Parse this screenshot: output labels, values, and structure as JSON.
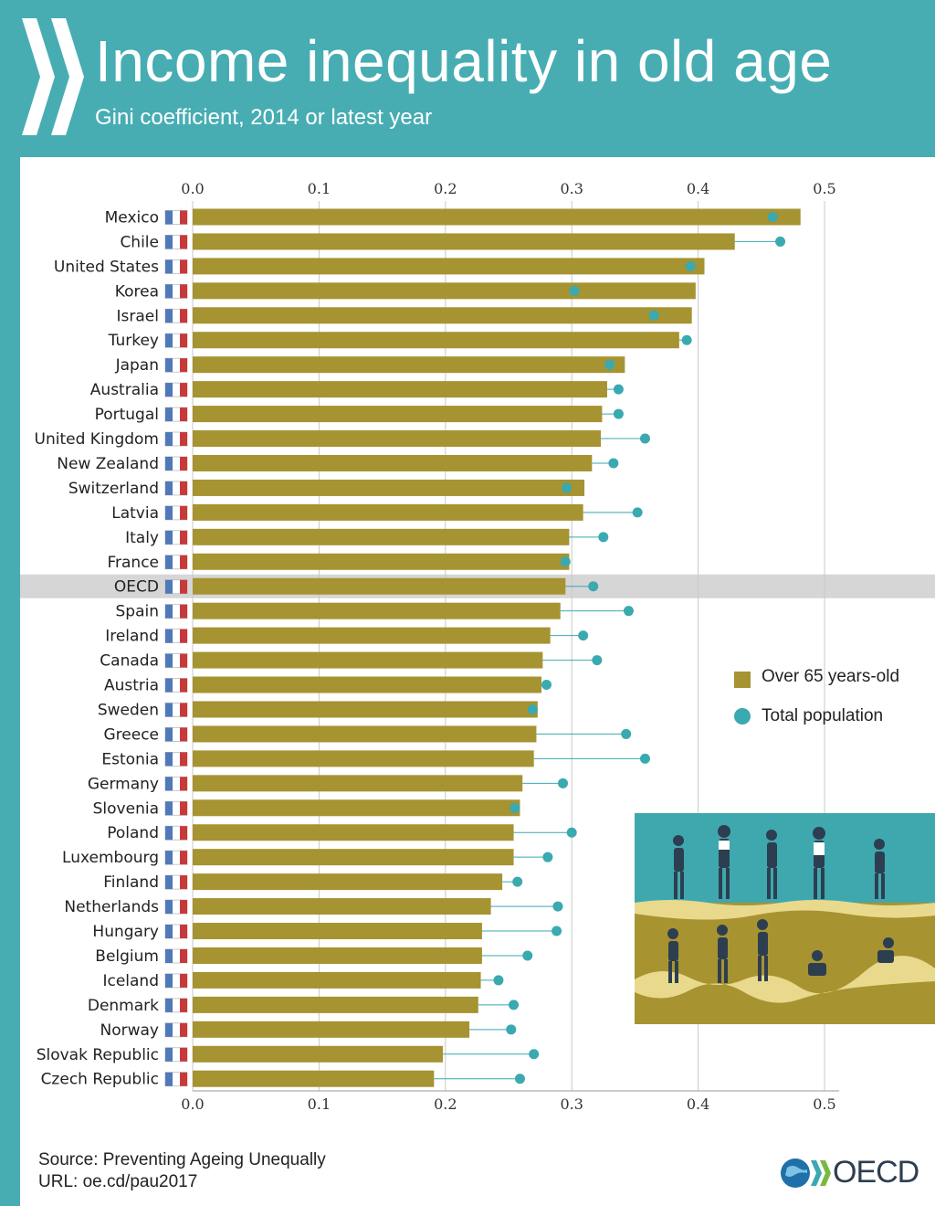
{
  "header": {
    "title": "Income inequality in old age",
    "subtitle": "Gini coefficient, 2014 or latest year"
  },
  "colors": {
    "header_bg": "#47adb3",
    "bar": "#a69331",
    "dot": "#3aa9b0",
    "oecd_band": "#d6d6d6"
  },
  "chart_data": {
    "type": "bar",
    "orientation": "horizontal",
    "title": "Income inequality in old age",
    "subtitle": "Gini coefficient, 2014 or latest year",
    "xlim": [
      0,
      0.5
    ],
    "ticks": [
      "0.0",
      "0.1",
      "0.2",
      "0.3",
      "0.4",
      "0.5"
    ],
    "grid": true,
    "legend_position": "right",
    "highlight": "OECD",
    "categories": [
      "Mexico",
      "Chile",
      "United States",
      "Korea",
      "Israel",
      "Turkey",
      "Japan",
      "Australia",
      "Portugal",
      "United Kingdom",
      "New Zealand",
      "Switzerland",
      "Latvia",
      "Italy",
      "France",
      "OECD",
      "Spain",
      "Ireland",
      "Canada",
      "Austria",
      "Sweden",
      "Greece",
      "Estonia",
      "Germany",
      "Slovenia",
      "Poland",
      "Luxembourg",
      "Finland",
      "Netherlands",
      "Hungary",
      "Belgium",
      "Iceland",
      "Denmark",
      "Norway",
      "Slovak Republic",
      "Czech Republic"
    ],
    "series": [
      {
        "name": "Over 65 years-old",
        "type": "bar",
        "values": [
          0.481,
          0.429,
          0.405,
          0.398,
          0.395,
          0.385,
          0.342,
          0.328,
          0.324,
          0.323,
          0.316,
          0.31,
          0.309,
          0.298,
          0.298,
          0.295,
          0.291,
          0.283,
          0.277,
          0.276,
          0.273,
          0.272,
          0.27,
          0.261,
          0.259,
          0.254,
          0.254,
          0.245,
          0.236,
          0.229,
          0.229,
          0.228,
          0.226,
          0.219,
          0.198,
          0.191
        ]
      },
      {
        "name": "Total population",
        "type": "dot",
        "values": [
          0.459,
          0.465,
          0.394,
          0.302,
          0.365,
          0.391,
          0.33,
          0.337,
          0.337,
          0.358,
          0.333,
          0.296,
          0.352,
          0.325,
          0.295,
          0.317,
          0.345,
          0.309,
          0.32,
          0.28,
          0.269,
          0.343,
          0.358,
          0.293,
          0.255,
          0.3,
          0.281,
          0.257,
          0.289,
          0.288,
          0.265,
          0.242,
          0.254,
          0.252,
          0.27,
          0.259
        ]
      }
    ]
  },
  "legend": {
    "bar_label": "Over 65 years-old",
    "dot_label": "Total population"
  },
  "footer": {
    "source": "Source: Preventing Ageing Unequally",
    "url": "URL: oe.cd/pau2017",
    "logo_text": "OECD"
  }
}
